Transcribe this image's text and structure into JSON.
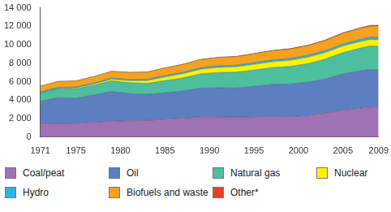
{
  "chart_data": {
    "type": "stacked_area",
    "x": [
      1971,
      1973,
      1975,
      1977,
      1979,
      1981,
      1983,
      1985,
      1987,
      1989,
      1991,
      1993,
      1995,
      1997,
      1999,
      2001,
      2003,
      2005,
      2007,
      2008,
      2009
    ],
    "series": [
      {
        "name": "Coal/peat",
        "color": "#9e72b4",
        "values": [
          1440,
          1480,
          1500,
          1600,
          1720,
          1760,
          1800,
          1950,
          2050,
          2200,
          2200,
          2150,
          2200,
          2250,
          2200,
          2350,
          2600,
          2900,
          3150,
          3250,
          3290
        ]
      },
      {
        "name": "Oil",
        "color": "#5b7fc0",
        "values": [
          2440,
          2800,
          2720,
          2950,
          3250,
          2950,
          2820,
          2850,
          2950,
          3100,
          3150,
          3180,
          3300,
          3450,
          3550,
          3600,
          3700,
          3950,
          4050,
          4050,
          3990
        ]
      },
      {
        "name": "Natural gas",
        "color": "#4dbf9f",
        "values": [
          890,
          950,
          990,
          1050,
          1120,
          1180,
          1200,
          1320,
          1400,
          1550,
          1650,
          1700,
          1760,
          1830,
          1900,
          2000,
          2150,
          2300,
          2450,
          2550,
          2560
        ]
      },
      {
        "name": "Nuclear",
        "color": "#fff200",
        "values": [
          29,
          53,
          100,
          140,
          170,
          220,
          290,
          390,
          460,
          500,
          550,
          580,
          610,
          620,
          660,
          700,
          690,
          720,
          710,
          710,
          700
        ]
      },
      {
        "name": "Hydro",
        "color": "#2fb3e6",
        "values": [
          104,
          110,
          120,
          125,
          135,
          140,
          145,
          155,
          160,
          165,
          175,
          180,
          195,
          200,
          210,
          205,
          215,
          225,
          235,
          245,
          250
        ]
      },
      {
        "name": "Biofuels and waste",
        "color": "#f6a21e",
        "values": [
          620,
          640,
          660,
          690,
          720,
          760,
          790,
          820,
          850,
          880,
          900,
          920,
          950,
          990,
          1010,
          1030,
          1100,
          1150,
          1190,
          1210,
          1240
        ]
      },
      {
        "name": "Other*",
        "color": "#e8402a",
        "values": [
          4,
          5,
          6,
          7,
          8,
          10,
          12,
          15,
          20,
          25,
          30,
          35,
          40,
          45,
          50,
          55,
          60,
          70,
          80,
          90,
          99
        ]
      }
    ],
    "stacked": true,
    "grid": false,
    "legend": "bottom",
    "xlim": [
      1971,
      2009
    ],
    "xticks": [
      1971,
      1975,
      1980,
      1985,
      1990,
      1995,
      2000,
      2005,
      2009
    ],
    "ylim": [
      0,
      14000
    ],
    "yticks": [
      0,
      {
        "value": 2000,
        "label": "2 000"
      },
      {
        "value": 4000,
        "label": "4 000"
      },
      {
        "value": 6000,
        "label": "6 000"
      },
      {
        "value": 8000,
        "label": "8 000"
      },
      {
        "value": 10000,
        "label": "10 000"
      },
      {
        "value": 12000,
        "label": "12 000"
      },
      {
        "value": 14000,
        "label": "14 000"
      }
    ]
  }
}
